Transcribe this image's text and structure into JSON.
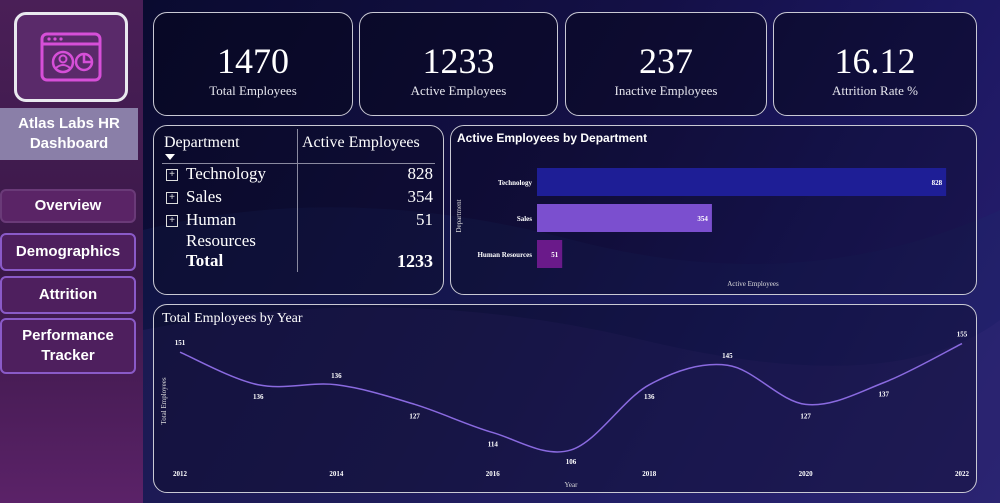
{
  "sidebar": {
    "title": "Atlas Labs HR Dashboard",
    "nav": [
      {
        "label": "Overview"
      },
      {
        "label": "Demographics"
      },
      {
        "label": "Attrition"
      },
      {
        "label": "Performance Tracker"
      }
    ]
  },
  "kpis": [
    {
      "value": "1470",
      "label": "Total Employees"
    },
    {
      "value": "1233",
      "label": "Active Employees"
    },
    {
      "value": "237",
      "label": "Inactive Employees"
    },
    {
      "value": "16.12",
      "label": "Attrition Rate %"
    }
  ],
  "dept_table": {
    "headers": [
      "Department",
      "Active Employees"
    ],
    "rows": [
      {
        "name": "Technology",
        "value": "828"
      },
      {
        "name": "Sales",
        "value": "354"
      },
      {
        "name": "Human Resources",
        "name_line1": "Human",
        "name_line2": "Resources",
        "value": "51"
      }
    ],
    "total_label": "Total",
    "total_value": "1233"
  },
  "chart_data": [
    {
      "type": "bar",
      "orientation": "horizontal",
      "title": "Active Employees by Department",
      "xlabel": "Active Employees",
      "ylabel": "Department",
      "categories": [
        "Technology",
        "Sales",
        "Human Resources"
      ],
      "values": [
        828,
        354,
        51
      ],
      "colors": [
        "#1e1e96",
        "#7b4fcf",
        "#6a1a8a"
      ],
      "xlim": [
        0,
        850
      ],
      "grid": false
    },
    {
      "type": "line",
      "title": "Total Employees by Year",
      "xlabel": "Year",
      "ylabel": "Total Employees",
      "x": [
        2012,
        2013,
        2014,
        2015,
        2016,
        2017,
        2018,
        2019,
        2020,
        2021,
        2022
      ],
      "values": [
        151,
        136,
        136,
        127,
        114,
        106,
        136,
        145,
        127,
        137,
        155
      ],
      "x_ticks": [
        "2012",
        "2014",
        "2016",
        "2018",
        "2020",
        "2022"
      ],
      "ylim": [
        100,
        158
      ],
      "line_color": "#8a6ae0",
      "grid": false
    }
  ]
}
